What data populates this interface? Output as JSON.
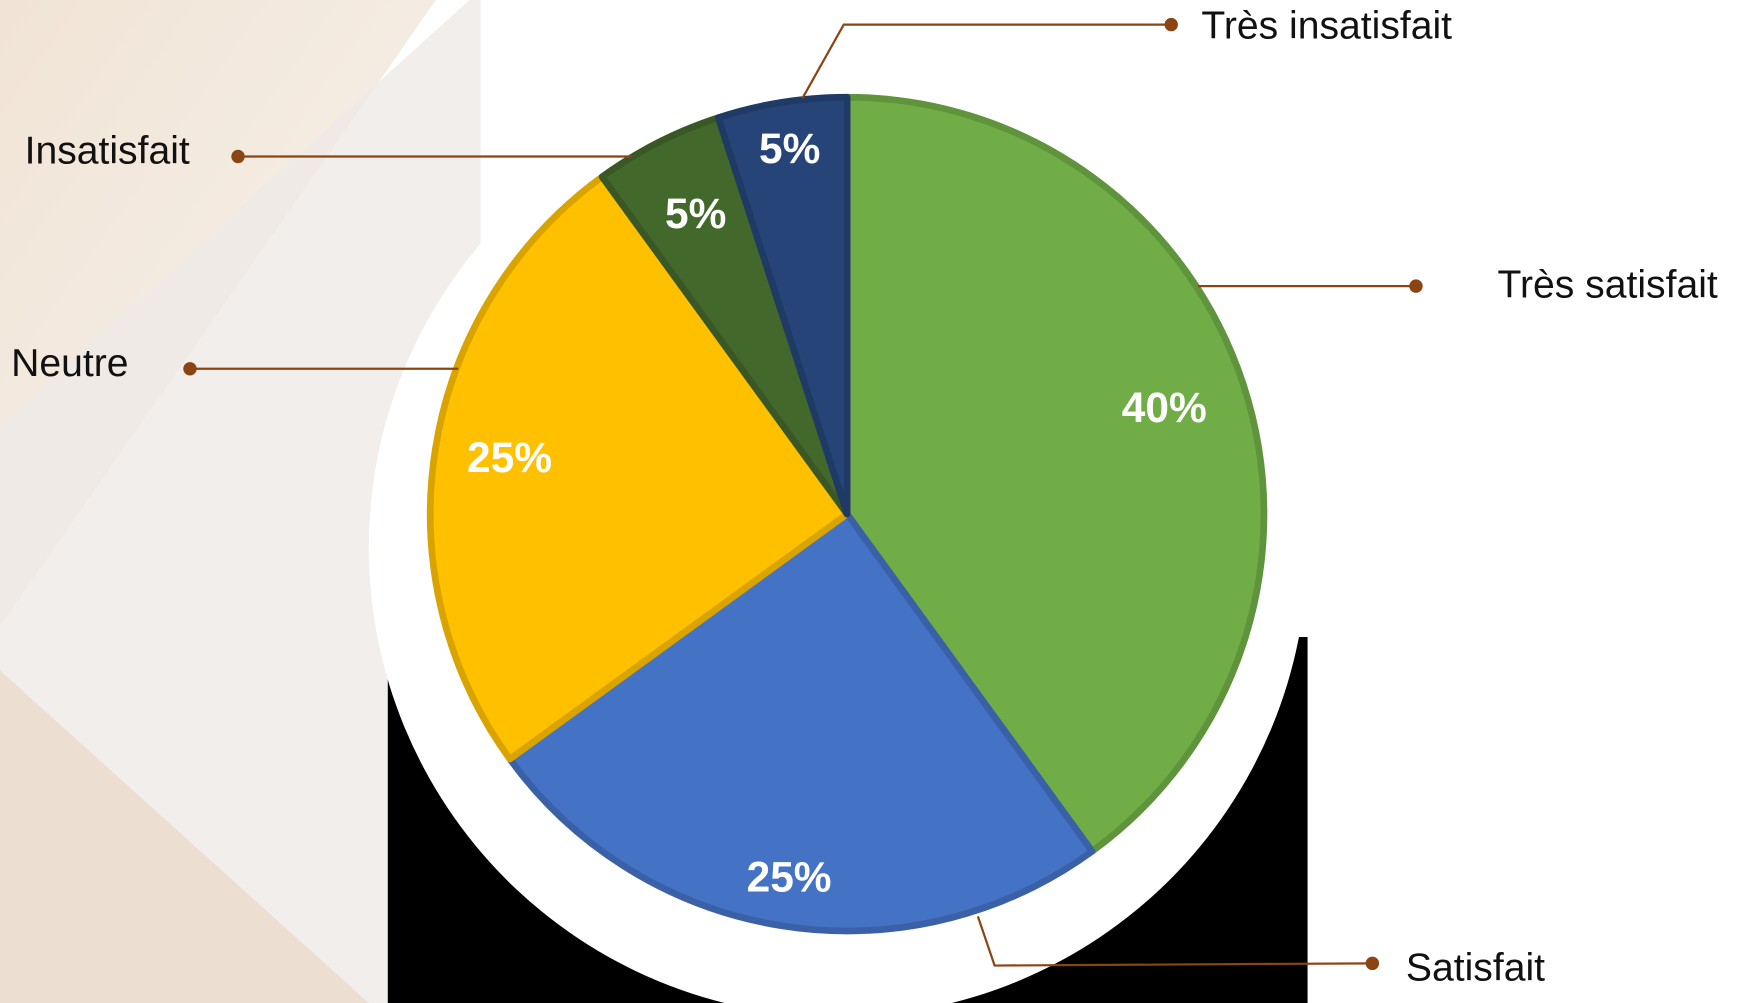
{
  "chart_data": {
    "type": "pie",
    "categories": [
      "Très satisfait",
      "Satisfait",
      "Neutre",
      "Insatisfait",
      "Très insatisfait"
    ],
    "values": [
      40,
      25,
      25,
      5,
      5
    ],
    "value_labels": [
      "40%",
      "25%",
      "25%",
      "5%",
      "5%"
    ],
    "colors": [
      "#70ad47",
      "#4472c4",
      "#ffc000",
      "#43682b",
      "#264478"
    ]
  }
}
